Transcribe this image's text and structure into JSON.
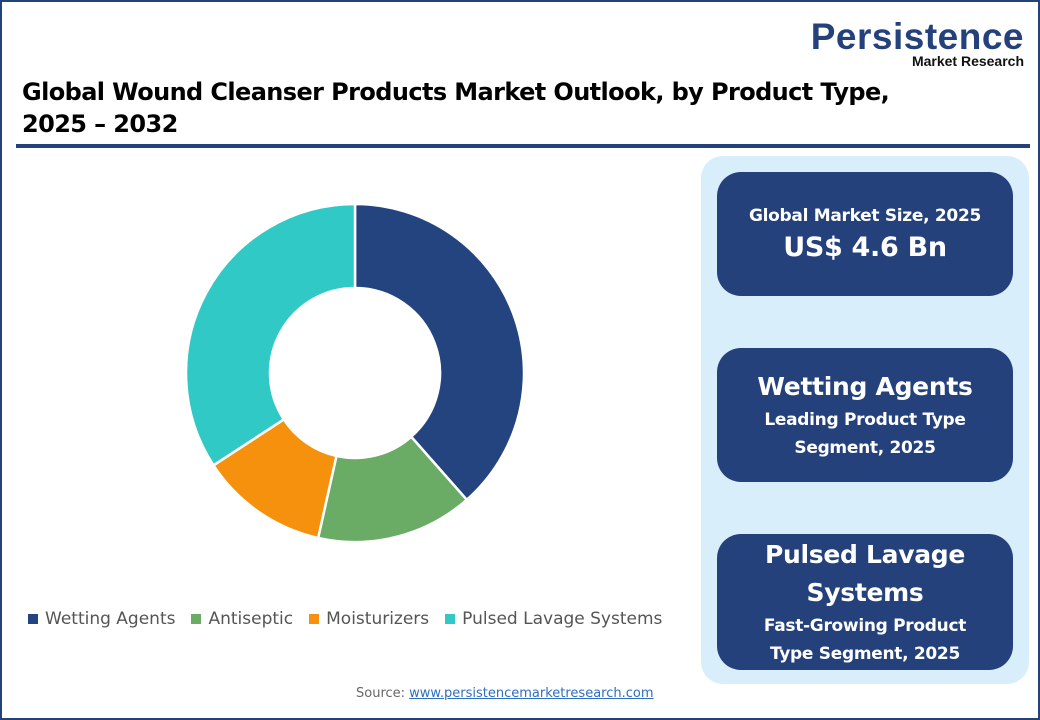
{
  "brand": {
    "name": "Persistence",
    "subtitle": "Market Research"
  },
  "title": {
    "line1": "Global Wound Cleanser Products Market Outlook, by Product Type,",
    "line2": "2025 – 2032"
  },
  "colors": {
    "primary": "#24417c",
    "panel_bg": "#d8eefb",
    "wetting_agents": "#24447f",
    "antiseptic": "#6aab66",
    "moisturizers": "#f5910d",
    "pulsed_lavage": "#31c9c5"
  },
  "chart_data": {
    "type": "pie",
    "subtype": "donut",
    "title": "Global Wound Cleanser Products Market Outlook, by Product Type, 2025 – 2032",
    "categories": [
      "Wetting Agents",
      "Antiseptic",
      "Moisturizers",
      "Pulsed Lavage Systems"
    ],
    "values": [
      38.5,
      15.0,
      12.3,
      34.2
    ],
    "unit": "% share (estimated from slice angles)",
    "colors": [
      "#24447f",
      "#6aab66",
      "#f5910d",
      "#31c9c5"
    ],
    "start_angle_deg": 0,
    "direction": "clockwise",
    "inner_radius_ratio": 0.5,
    "legend_position": "bottom",
    "data_labels": false
  },
  "legend": [
    {
      "label": "Wetting Agents",
      "color": "#24447f"
    },
    {
      "label": "Antiseptic",
      "color": "#6aab66"
    },
    {
      "label": "Moisturizers",
      "color": "#f5910d"
    },
    {
      "label": "Pulsed Lavage Systems",
      "color": "#31c9c5"
    }
  ],
  "cards": {
    "market_size": {
      "label": "Global Market Size, 2025",
      "value": "US$ 4.6 Bn"
    },
    "leading": {
      "segment": "Wetting Agents",
      "line1": "Leading Product Type",
      "line2": "Segment, 2025"
    },
    "fastest": {
      "segment_line1": "Pulsed Lavage",
      "segment_line2": "Systems",
      "line1": "Fast-Growing Product",
      "line2": "Type Segment, 2025"
    }
  },
  "source": {
    "label": "Source:",
    "link_text": "www.persistencemarketresearch.com"
  }
}
